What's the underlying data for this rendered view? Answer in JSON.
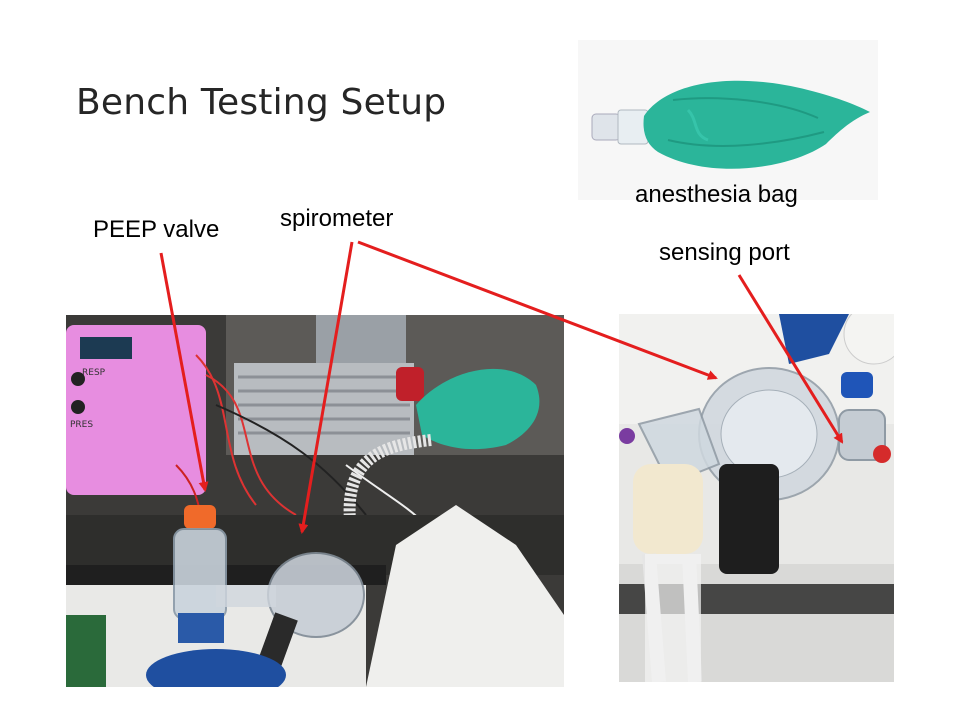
{
  "slide": {
    "title": "Bench Testing Setup"
  },
  "labels": {
    "peep_valve": "PEEP valve",
    "spirometer": "spirometer",
    "anesthesia_bag": "anesthesia bag",
    "sensing_port": "sensing port"
  },
  "photo_text": {
    "device_resp": "RESP",
    "device_pres": "PRES"
  },
  "colors": {
    "arrow": "#e41e1e",
    "bag_green": "#2bb59a",
    "device_pink": "#e78de0",
    "title_text": "#262626"
  }
}
